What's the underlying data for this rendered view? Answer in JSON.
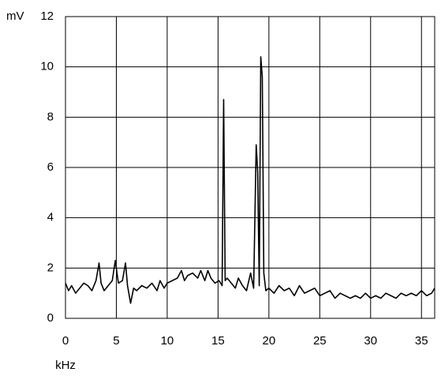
{
  "chart_data": {
    "type": "line",
    "xlabel": "kHz",
    "ylabel": "mV",
    "x": [
      0,
      0.3,
      0.6,
      1,
      1.4,
      1.8,
      2.2,
      2.6,
      3,
      3.3,
      3.5,
      3.8,
      4.2,
      4.6,
      4.9,
      5.2,
      5.6,
      5.9,
      6.1,
      6.4,
      6.7,
      7,
      7.5,
      8,
      8.5,
      9,
      9.3,
      9.7,
      10,
      10.5,
      11,
      11.4,
      11.7,
      12,
      12.5,
      13,
      13.3,
      13.7,
      14,
      14.3,
      14.7,
      15.1,
      15.4,
      15.55,
      15.7,
      15.9,
      16.3,
      16.7,
      17,
      17.4,
      17.8,
      18.2,
      18.5,
      18.75,
      18.9,
      19.05,
      19.2,
      19.35,
      19.5,
      19.7,
      20,
      20.5,
      21,
      21.5,
      22,
      22.5,
      23,
      23.5,
      24,
      24.5,
      25,
      25.5,
      26,
      26.5,
      27,
      27.5,
      28,
      28.5,
      29,
      29.5,
      30,
      30.5,
      31,
      31.5,
      32,
      32.5,
      33,
      33.5,
      34,
      34.5,
      35,
      35.5,
      36,
      36.3
    ],
    "series": [
      {
        "color": "#000000",
        "values": [
          1.4,
          1.1,
          1.3,
          1.0,
          1.2,
          1.4,
          1.3,
          1.1,
          1.5,
          2.2,
          1.4,
          1.1,
          1.3,
          1.5,
          2.3,
          1.4,
          1.5,
          2.2,
          1.3,
          0.6,
          1.2,
          1.1,
          1.3,
          1.2,
          1.4,
          1.1,
          1.5,
          1.2,
          1.4,
          1.5,
          1.6,
          1.9,
          1.5,
          1.7,
          1.8,
          1.6,
          1.9,
          1.5,
          1.9,
          1.6,
          1.4,
          1.5,
          1.3,
          8.7,
          1.5,
          1.6,
          1.4,
          1.2,
          1.6,
          1.3,
          1.1,
          1.8,
          1.2,
          6.9,
          5.8,
          1.3,
          10.4,
          9.6,
          1.8,
          1.1,
          1.2,
          1.0,
          1.3,
          1.1,
          1.2,
          0.9,
          1.3,
          1.0,
          1.1,
          1.2,
          0.9,
          1.0,
          1.1,
          0.8,
          1.0,
          0.9,
          0.8,
          0.9,
          0.8,
          1.0,
          0.8,
          0.9,
          0.8,
          1.0,
          0.9,
          0.8,
          1.0,
          0.9,
          1.0,
          0.9,
          1.1,
          0.9,
          1.0,
          1.2
        ]
      }
    ],
    "xlim": [
      0,
      36.3
    ],
    "xticks": [
      0,
      5,
      10,
      15,
      20,
      25,
      30,
      35
    ],
    "ylim": [
      0,
      12
    ],
    "yticks": [
      0,
      2,
      4,
      6,
      8,
      10,
      12
    ],
    "grid": true
  }
}
